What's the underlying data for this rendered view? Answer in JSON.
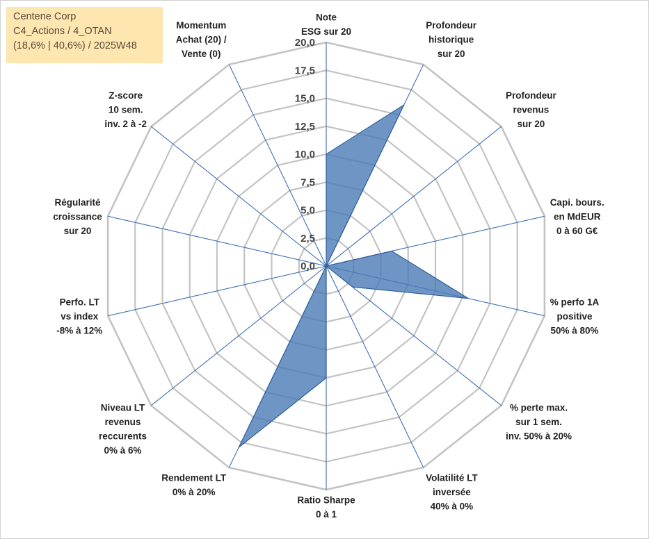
{
  "info_box": {
    "company": "Centene Corp",
    "classification": "C4_Actions / 4_OTAN",
    "stats": "(18,6% | 40,6%) / 2025W48"
  },
  "colors": {
    "fill": "#4a7ab5",
    "stroke": "#2e5e9e",
    "grid": "#c3c3c3",
    "spoke": "#3d6fb3",
    "background": "#ffffff"
  },
  "chart_data": {
    "type": "radar",
    "title": "",
    "rmin": 0,
    "rmax": 20,
    "grid_step": 2.5,
    "tick_labels": [
      "0,0",
      "2,5",
      "5,0",
      "7,5",
      "10,0",
      "12,5",
      "15,0",
      "17,5",
      "20,0"
    ],
    "axes": [
      [
        "Note",
        "ESG sur 20"
      ],
      [
        "Profondeur",
        "historique",
        "sur 20"
      ],
      [
        "Profondeur",
        "revenus",
        "sur 20"
      ],
      [
        "Capi. bours.",
        "en MdEUR",
        "0 à 60 G€"
      ],
      [
        "% perfo 1A",
        "positive",
        "50% à 80%"
      ],
      [
        "% perte max.",
        "sur 1 sem.",
        "inv. 50% à 20%"
      ],
      [
        "Volatilité LT",
        "inversée",
        "40% à 0%"
      ],
      [
        "Ratio Sharpe",
        "0 à 1"
      ],
      [
        "Rendement LT",
        "0% à 20%"
      ],
      [
        "Niveau LT",
        "revenus",
        "reccurents",
        "0% à 6%"
      ],
      [
        "Perfo. LT",
        "vs index",
        "-8% à 12%"
      ],
      [
        "Régularité",
        "croissance",
        "sur 20"
      ],
      [
        "Z-score",
        "10 sem.",
        "inv. 2 à -2"
      ],
      [
        "Momentum",
        "Achat (20) /",
        "Vente (0)"
      ]
    ],
    "series": [
      {
        "name": "Centene Corp",
        "values": [
          10.0,
          16.0,
          0.0,
          6.0,
          13.0,
          3.0,
          0.0,
          10.0,
          18.0,
          0.0,
          0.0,
          0.0,
          0.0,
          0.0
        ]
      }
    ]
  }
}
